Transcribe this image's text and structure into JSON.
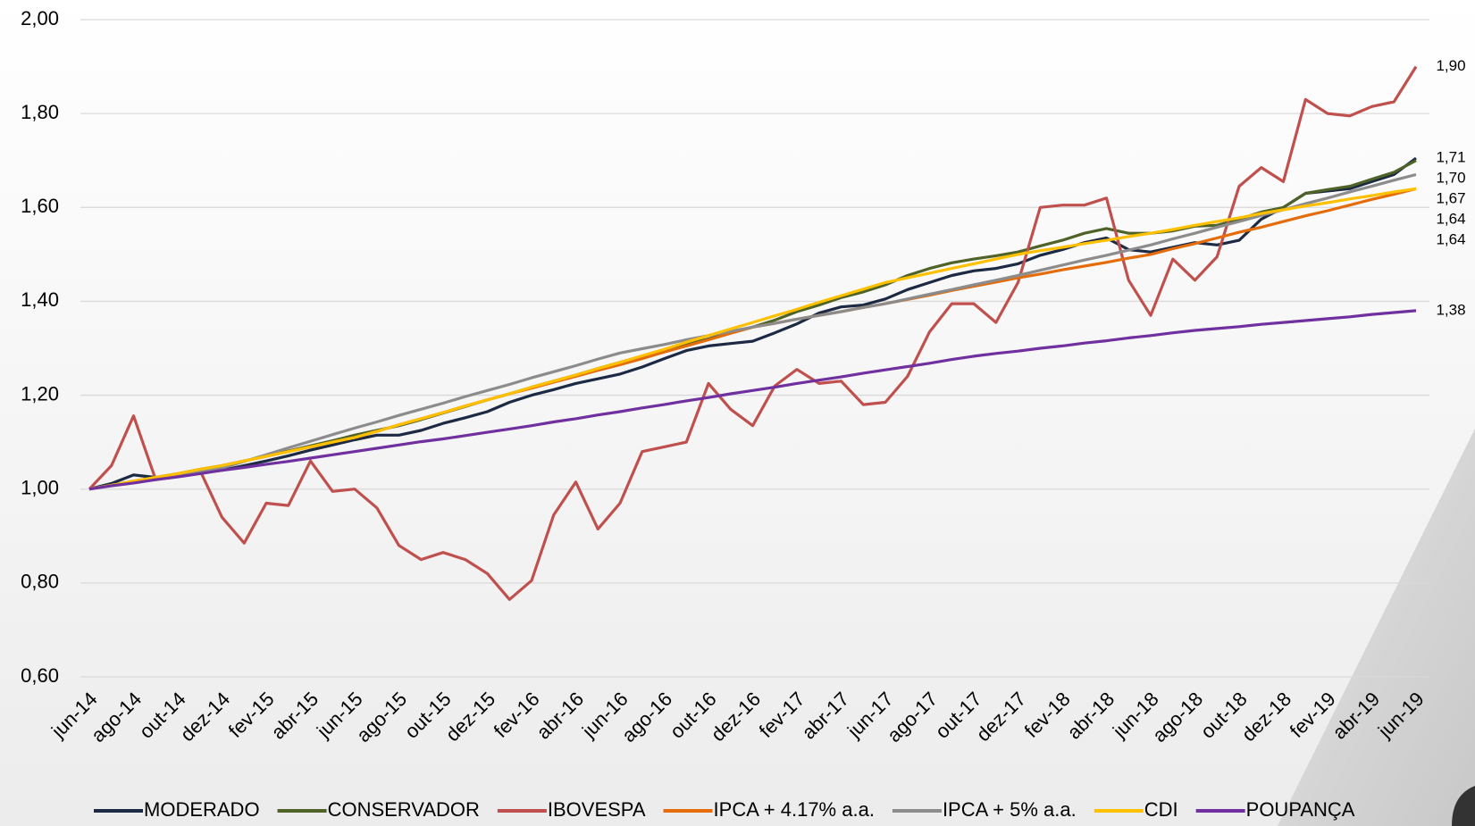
{
  "chart_data": {
    "type": "line",
    "categories": [
      "jun-14",
      null,
      "ago-14",
      null,
      "out-14",
      null,
      "dez-14",
      null,
      "fev-15",
      null,
      "abr-15",
      null,
      "jun-15",
      null,
      "ago-15",
      null,
      "out-15",
      null,
      "dez-15",
      null,
      "fev-16",
      null,
      "abr-16",
      null,
      "jun-16",
      null,
      "ago-16",
      null,
      "out-16",
      null,
      "dez-16",
      null,
      "fev-17",
      null,
      "abr-17",
      null,
      "jun-17",
      null,
      "ago-17",
      null,
      "out-17",
      null,
      "dez-17",
      null,
      "fev-18",
      null,
      "abr-18",
      null,
      "jun-18",
      null,
      "ago-18",
      null,
      "out-18",
      null,
      "dez-18",
      null,
      "fev-19",
      null,
      "abr-19",
      null,
      "jun-19"
    ],
    "ylim": [
      0.6,
      2.0
    ],
    "yticks": [
      {
        "value": 0.6,
        "label": "0,60"
      },
      {
        "value": 0.8,
        "label": "0,80"
      },
      {
        "value": 1.0,
        "label": "1,00"
      },
      {
        "value": 1.2,
        "label": "1,20"
      },
      {
        "value": 1.4,
        "label": "1,40"
      },
      {
        "value": 1.6,
        "label": "1,60"
      },
      {
        "value": 1.8,
        "label": "1,80"
      },
      {
        "value": 2.0,
        "label": "2,00"
      }
    ],
    "grid": true,
    "legend": "bottom",
    "series": [
      {
        "name": "MODERADO",
        "color": "#1c2a44",
        "end_label": "1,71",
        "values": [
          1.0,
          1.012,
          1.03,
          1.025,
          1.03,
          1.035,
          1.04,
          1.05,
          1.06,
          1.071,
          1.083,
          1.094,
          1.105,
          1.115,
          1.115,
          1.125,
          1.14,
          1.152,
          1.165,
          1.185,
          1.2,
          1.212,
          1.225,
          1.235,
          1.245,
          1.26,
          1.278,
          1.295,
          1.305,
          1.31,
          1.315,
          1.333,
          1.352,
          1.375,
          1.388,
          1.392,
          1.405,
          1.425,
          1.44,
          1.455,
          1.465,
          1.47,
          1.48,
          1.498,
          1.51,
          1.525,
          1.535,
          1.51,
          1.505,
          1.515,
          1.525,
          1.52,
          1.53,
          1.575,
          1.6,
          1.63,
          1.635,
          1.64,
          1.655,
          1.67,
          1.705
        ]
      },
      {
        "name": "CONSERVADOR",
        "color": "#4f6228",
        "end_label": "1,70",
        "values": [
          1.0,
          1.008,
          1.017,
          1.025,
          1.033,
          1.042,
          1.05,
          1.06,
          1.07,
          1.081,
          1.092,
          1.103,
          1.115,
          1.125,
          1.135,
          1.148,
          1.162,
          1.176,
          1.19,
          1.203,
          1.217,
          1.23,
          1.243,
          1.257,
          1.27,
          1.283,
          1.296,
          1.308,
          1.32,
          1.333,
          1.345,
          1.36,
          1.378,
          1.392,
          1.408,
          1.42,
          1.435,
          1.455,
          1.47,
          1.482,
          1.49,
          1.497,
          1.505,
          1.518,
          1.53,
          1.545,
          1.555,
          1.545,
          1.545,
          1.55,
          1.56,
          1.562,
          1.575,
          1.59,
          1.6,
          1.63,
          1.638,
          1.645,
          1.66,
          1.675,
          1.7
        ]
      },
      {
        "name": "IBOVESPA",
        "color": "#c0504d",
        "end_label": "1,90",
        "values": [
          1.0,
          1.05,
          1.156,
          1.02,
          1.03,
          1.04,
          0.94,
          0.885,
          0.97,
          0.965,
          1.06,
          0.995,
          1.0,
          0.96,
          0.88,
          0.85,
          0.865,
          0.85,
          0.82,
          0.765,
          0.805,
          0.945,
          1.015,
          0.915,
          0.97,
          1.08,
          1.09,
          1.1,
          1.225,
          1.17,
          1.135,
          1.22,
          1.255,
          1.225,
          1.23,
          1.18,
          1.185,
          1.24,
          1.335,
          1.395,
          1.395,
          1.355,
          1.44,
          1.6,
          1.605,
          1.605,
          1.62,
          1.445,
          1.37,
          1.49,
          1.445,
          1.495,
          1.645,
          1.685,
          1.655,
          1.83,
          1.8,
          1.795,
          1.815,
          1.825,
          1.9
        ]
      },
      {
        "name": "IPCA + 4.17% a.a.",
        "color": "#e46c0a",
        "end_label": "1,64",
        "values": [
          1.0,
          1.008,
          1.017,
          1.025,
          1.033,
          1.042,
          1.05,
          1.06,
          1.07,
          1.08,
          1.09,
          1.1,
          1.11,
          1.123,
          1.137,
          1.15,
          1.163,
          1.177,
          1.19,
          1.203,
          1.215,
          1.228,
          1.24,
          1.253,
          1.265,
          1.278,
          1.292,
          1.305,
          1.318,
          1.332,
          1.345,
          1.353,
          1.362,
          1.37,
          1.378,
          1.387,
          1.395,
          1.404,
          1.413,
          1.423,
          1.432,
          1.441,
          1.45,
          1.458,
          1.467,
          1.475,
          1.483,
          1.492,
          1.5,
          1.512,
          1.523,
          1.535,
          1.547,
          1.558,
          1.57,
          1.582,
          1.593,
          1.605,
          1.617,
          1.628,
          1.64
        ]
      },
      {
        "name": "IPCA + 5% a.a.",
        "color": "#8c8c8c",
        "end_label": "1,67",
        "values": [
          1.0,
          1.008,
          1.015,
          1.023,
          1.03,
          1.038,
          1.045,
          1.059,
          1.073,
          1.088,
          1.102,
          1.116,
          1.13,
          1.143,
          1.157,
          1.17,
          1.183,
          1.197,
          1.21,
          1.223,
          1.237,
          1.25,
          1.263,
          1.277,
          1.29,
          1.299,
          1.308,
          1.318,
          1.327,
          1.336,
          1.345,
          1.353,
          1.362,
          1.37,
          1.378,
          1.387,
          1.395,
          1.405,
          1.415,
          1.425,
          1.435,
          1.445,
          1.455,
          1.466,
          1.477,
          1.488,
          1.498,
          1.509,
          1.52,
          1.533,
          1.545,
          1.558,
          1.57,
          1.583,
          1.595,
          1.608,
          1.62,
          1.633,
          1.645,
          1.658,
          1.67
        ]
      },
      {
        "name": "CDI",
        "color": "#ffc000",
        "end_label": "1,64",
        "values": [
          1.0,
          1.008,
          1.017,
          1.025,
          1.033,
          1.042,
          1.05,
          1.06,
          1.07,
          1.08,
          1.09,
          1.1,
          1.11,
          1.123,
          1.137,
          1.15,
          1.163,
          1.177,
          1.19,
          1.203,
          1.217,
          1.23,
          1.243,
          1.257,
          1.27,
          1.284,
          1.298,
          1.313,
          1.327,
          1.341,
          1.355,
          1.369,
          1.383,
          1.398,
          1.412,
          1.426,
          1.44,
          1.45,
          1.46,
          1.47,
          1.48,
          1.49,
          1.5,
          1.508,
          1.515,
          1.523,
          1.53,
          1.538,
          1.545,
          1.553,
          1.562,
          1.57,
          1.578,
          1.587,
          1.595,
          1.603,
          1.61,
          1.618,
          1.625,
          1.633,
          1.64
        ]
      },
      {
        "name": "POUPANÇA",
        "color": "#7030a0",
        "end_label": "1,38",
        "values": [
          1.0,
          1.007,
          1.013,
          1.02,
          1.026,
          1.033,
          1.04,
          1.046,
          1.053,
          1.059,
          1.066,
          1.073,
          1.08,
          1.087,
          1.094,
          1.101,
          1.107,
          1.114,
          1.121,
          1.128,
          1.135,
          1.143,
          1.15,
          1.158,
          1.165,
          1.173,
          1.18,
          1.188,
          1.195,
          1.203,
          1.21,
          1.217,
          1.225,
          1.232,
          1.239,
          1.247,
          1.254,
          1.261,
          1.268,
          1.276,
          1.283,
          1.289,
          1.294,
          1.3,
          1.305,
          1.311,
          1.316,
          1.322,
          1.327,
          1.333,
          1.338,
          1.342,
          1.346,
          1.351,
          1.355,
          1.359,
          1.363,
          1.367,
          1.372,
          1.376,
          1.38
        ]
      }
    ]
  }
}
